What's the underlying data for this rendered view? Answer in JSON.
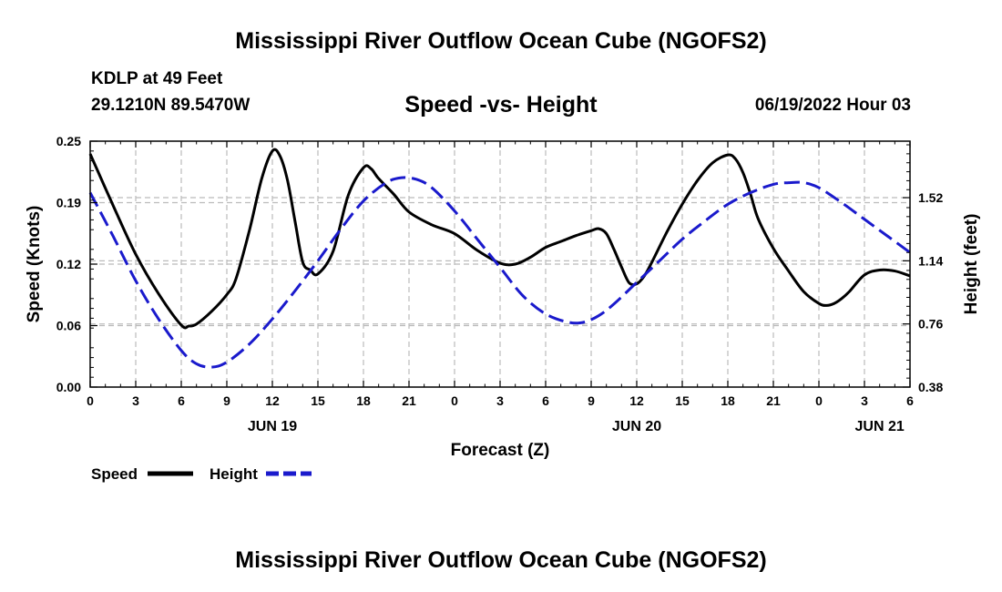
{
  "header": {
    "title": "Mississippi River Outflow Ocean Cube (NGOFS2)",
    "station": "KDLP at 49 Feet",
    "coords": "29.1210N  89.5470W",
    "subtitle": "Speed -vs- Height",
    "datetime": "06/19/2022 Hour 03"
  },
  "footer": {
    "title": "Mississippi River Outflow Ocean Cube (NGOFS2)"
  },
  "colors": {
    "speed": "#000000",
    "height": "#1a1acc",
    "grid": "#bbbbbb"
  },
  "chart_data": {
    "type": "line",
    "title": "Speed -vs- Height",
    "xlabel": "Forecast (Z)",
    "ylabel": "Speed (Knots)",
    "y2label": "Height (feet)",
    "xlim": [
      0,
      54
    ],
    "ylim": [
      0,
      0.25
    ],
    "y2lim": [
      0.38,
      1.86
    ],
    "x_ticks": [
      0,
      3,
      6,
      9,
      12,
      15,
      18,
      21,
      24,
      27,
      30,
      33,
      36,
      39,
      42,
      45,
      48,
      51,
      54
    ],
    "x_tick_labels": [
      "0",
      "3",
      "6",
      "9",
      "12",
      "15",
      "18",
      "21",
      "0",
      "3",
      "6",
      "9",
      "12",
      "15",
      "18",
      "21",
      "0",
      "3",
      "6"
    ],
    "date_labels": [
      {
        "x": 12,
        "label": "JUN 19"
      },
      {
        "x": 36,
        "label": "JUN 20"
      },
      {
        "x": 52,
        "label": "JUN 21"
      }
    ],
    "y_ticks": [
      0,
      0.0625,
      0.125,
      0.1875,
      0.25
    ],
    "y_tick_labels": [
      "0.00",
      "0.06",
      "0.12",
      "0.19",
      "0.25"
    ],
    "y2_ticks": [
      0.38,
      0.76,
      1.14,
      1.52
    ],
    "y2_tick_labels": [
      "0.38",
      "0.76",
      "1.14",
      "1.52"
    ],
    "series": [
      {
        "name": "Speed",
        "axis": "left",
        "style": "solid",
        "x": [
          0,
          1.5,
          3,
          4.5,
          6,
          6.5,
          7,
          8,
          9,
          9.6,
          10.5,
          11.3,
          12,
          12.5,
          13,
          13.5,
          14,
          14.5,
          15,
          16,
          17,
          18,
          18.5,
          19,
          20,
          21,
          22.5,
          24,
          25.5,
          27,
          28,
          29,
          30,
          31,
          32,
          33,
          33.5,
          34,
          34.5,
          35,
          35.5,
          36,
          36.5,
          37,
          38,
          39,
          40,
          41,
          42,
          42.5,
          43,
          43.5,
          44,
          45,
          46,
          47,
          48,
          48.5,
          49,
          49.5,
          50,
          51,
          52,
          53,
          54
        ],
        "y": [
          0.237,
          0.185,
          0.135,
          0.095,
          0.063,
          0.062,
          0.064,
          0.077,
          0.094,
          0.11,
          0.16,
          0.212,
          0.24,
          0.235,
          0.21,
          0.168,
          0.127,
          0.119,
          0.115,
          0.138,
          0.195,
          0.223,
          0.222,
          0.212,
          0.196,
          0.178,
          0.165,
          0.156,
          0.139,
          0.126,
          0.125,
          0.132,
          0.142,
          0.148,
          0.154,
          0.159,
          0.161,
          0.156,
          0.14,
          0.122,
          0.106,
          0.105,
          0.113,
          0.127,
          0.158,
          0.186,
          0.21,
          0.228,
          0.236,
          0.232,
          0.218,
          0.196,
          0.171,
          0.141,
          0.118,
          0.097,
          0.085,
          0.083,
          0.085,
          0.09,
          0.097,
          0.114,
          0.119,
          0.118,
          0.113
        ]
      },
      {
        "name": "Height",
        "axis": "right",
        "style": "dashed",
        "x": [
          0,
          1.5,
          3,
          4.5,
          6,
          7,
          8,
          9,
          10.5,
          12,
          13.5,
          15,
          16.5,
          18,
          19.5,
          20.5,
          21.5,
          22.5,
          24,
          25.5,
          27,
          28.5,
          30,
          31.5,
          32.5,
          33.5,
          34.5,
          36,
          37.5,
          39,
          40.5,
          42,
          43.5,
          45,
          46,
          47,
          48,
          49.5,
          51,
          52.5,
          54
        ],
        "y": [
          1.55,
          1.29,
          1.02,
          0.79,
          0.6,
          0.52,
          0.5,
          0.53,
          0.64,
          0.79,
          0.96,
          1.14,
          1.33,
          1.5,
          1.61,
          1.64,
          1.63,
          1.58,
          1.44,
          1.27,
          1.1,
          0.93,
          0.82,
          0.77,
          0.77,
          0.81,
          0.88,
          1.01,
          1.14,
          1.27,
          1.38,
          1.48,
          1.55,
          1.6,
          1.61,
          1.61,
          1.58,
          1.49,
          1.39,
          1.29,
          1.19
        ]
      }
    ],
    "legend": [
      {
        "name": "Speed",
        "label": "Speed"
      },
      {
        "name": "Height",
        "label": "Height"
      }
    ],
    "legend_position": "bottom-left",
    "grid": true
  }
}
